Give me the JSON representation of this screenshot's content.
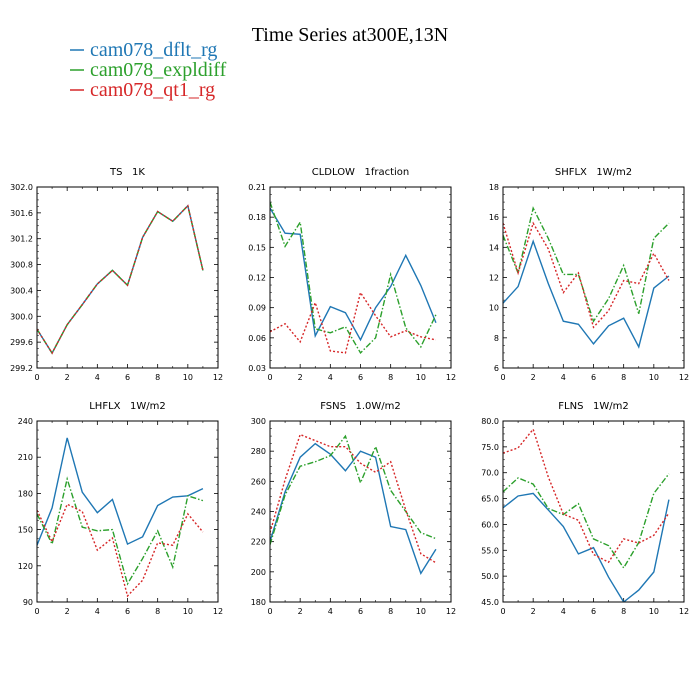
{
  "title": "Time Series at300E,13N",
  "legend": [
    {
      "label": "cam078_dflt_rg",
      "color": "#1f77b4",
      "dash": "solid"
    },
    {
      "label": "cam078_expldiff",
      "color": "#2ca02c",
      "dash": "dashdot"
    },
    {
      "label": "cam078_qt1_rg",
      "color": "#d62728",
      "dash": "dotted"
    }
  ],
  "chart_data": [
    {
      "type": "line",
      "title": "TS   1K",
      "x": [
        0,
        1,
        2,
        3,
        4,
        5,
        6,
        7,
        8,
        9,
        10,
        11
      ],
      "xlim": [
        0,
        12
      ],
      "xticks": [
        0,
        2,
        4,
        6,
        8,
        10,
        12
      ],
      "ylim": [
        299.2,
        302.0
      ],
      "yticks": [
        299.2,
        299.6,
        300.0,
        300.4,
        300.8,
        301.2,
        301.6,
        302.0
      ],
      "ydec": 1,
      "series": [
        {
          "name": "cam078_dflt_rg",
          "values": [
            299.8,
            299.43,
            299.87,
            300.18,
            300.5,
            300.71,
            300.48,
            301.22,
            301.62,
            301.47,
            301.71,
            300.71
          ]
        },
        {
          "name": "cam078_expldiff",
          "values": [
            299.8,
            299.43,
            299.87,
            300.18,
            300.5,
            300.71,
            300.48,
            301.22,
            301.62,
            301.47,
            301.71,
            300.71
          ]
        },
        {
          "name": "cam078_qt1_rg",
          "values": [
            299.8,
            299.43,
            299.87,
            300.18,
            300.5,
            300.71,
            300.48,
            301.22,
            301.62,
            301.47,
            301.71,
            300.71
          ]
        }
      ]
    },
    {
      "type": "line",
      "title": "CLDLOW   1fraction",
      "x": [
        0,
        1,
        2,
        3,
        4,
        5,
        6,
        7,
        8,
        9,
        10,
        11
      ],
      "xlim": [
        0,
        12
      ],
      "xticks": [
        0,
        2,
        4,
        6,
        8,
        10,
        12
      ],
      "ylim": [
        0.03,
        0.21
      ],
      "yticks": [
        0.03,
        0.06,
        0.09,
        0.12,
        0.15,
        0.18,
        0.21
      ],
      "ydec": 2,
      "series": [
        {
          "name": "cam078_dflt_rg",
          "values": [
            0.189,
            0.164,
            0.163,
            0.062,
            0.091,
            0.085,
            0.058,
            0.09,
            0.111,
            0.142,
            0.112,
            0.075
          ]
        },
        {
          "name": "cam078_expldiff",
          "values": [
            0.195,
            0.151,
            0.175,
            0.069,
            0.065,
            0.071,
            0.045,
            0.06,
            0.123,
            0.07,
            0.051,
            0.083
          ]
        },
        {
          "name": "cam078_qt1_rg",
          "values": [
            0.066,
            0.074,
            0.056,
            0.095,
            0.047,
            0.045,
            0.105,
            0.082,
            0.061,
            0.067,
            0.061,
            0.058
          ]
        }
      ]
    },
    {
      "type": "line",
      "title": "SHFLX   1W/m2",
      "x": [
        0,
        1,
        2,
        3,
        4,
        5,
        6,
        7,
        8,
        9,
        10,
        11
      ],
      "xlim": [
        0,
        12
      ],
      "xticks": [
        0,
        2,
        4,
        6,
        8,
        10,
        12
      ],
      "ylim": [
        6,
        18
      ],
      "yticks": [
        6,
        8,
        10,
        12,
        14,
        16,
        18
      ],
      "ydec": 0,
      "series": [
        {
          "name": "cam078_dflt_rg",
          "values": [
            10.3,
            11.4,
            14.4,
            11.6,
            9.1,
            8.9,
            7.6,
            8.8,
            9.3,
            7.4,
            11.3,
            12.1
          ]
        },
        {
          "name": "cam078_expldiff",
          "values": [
            14.8,
            12.3,
            16.6,
            14.6,
            12.2,
            12.2,
            9.1,
            10.6,
            12.8,
            9.6,
            14.6,
            15.6
          ]
        },
        {
          "name": "cam078_qt1_rg",
          "values": [
            15.6,
            12.3,
            15.6,
            13.9,
            11.0,
            12.3,
            8.7,
            9.8,
            11.8,
            11.6,
            13.6,
            11.8
          ]
        }
      ]
    },
    {
      "type": "line",
      "title": "LHFLX   1W/m2",
      "x": [
        0,
        1,
        2,
        3,
        4,
        5,
        6,
        7,
        8,
        9,
        10,
        11
      ],
      "xlim": [
        0,
        12
      ],
      "xticks": [
        0,
        2,
        4,
        6,
        8,
        10,
        12
      ],
      "ylim": [
        90,
        240
      ],
      "yticks": [
        90,
        120,
        150,
        180,
        210,
        240
      ],
      "ydec": 0,
      "series": [
        {
          "name": "cam078_dflt_rg",
          "values": [
            137,
            168,
            226,
            181,
            164,
            175,
            138,
            144,
            170,
            177,
            178,
            184
          ]
        },
        {
          "name": "cam078_expldiff",
          "values": [
            163,
            138,
            192,
            152,
            149,
            150,
            105,
            126,
            149,
            119,
            178,
            174
          ]
        },
        {
          "name": "cam078_qt1_rg",
          "values": [
            166,
            140,
            171,
            165,
            133,
            143,
            95,
            108,
            139,
            137,
            163,
            148
          ]
        }
      ]
    },
    {
      "type": "line",
      "title": "FSNS   1.0W/m2",
      "x": [
        0,
        1,
        2,
        3,
        4,
        5,
        6,
        7,
        8,
        9,
        10,
        11
      ],
      "xlim": [
        0,
        12
      ],
      "xticks": [
        0,
        2,
        4,
        6,
        8,
        10,
        12
      ],
      "ylim": [
        180,
        300
      ],
      "yticks": [
        180,
        200,
        220,
        240,
        260,
        280,
        300
      ],
      "ydec": 0,
      "series": [
        {
          "name": "cam078_dflt_rg",
          "values": [
            220,
            253,
            276,
            285,
            278,
            267,
            280,
            276,
            230,
            228,
            199,
            215
          ]
        },
        {
          "name": "cam078_expldiff",
          "values": [
            218,
            251,
            270,
            273,
            277,
            290,
            259,
            283,
            254,
            240,
            226,
            222
          ]
        },
        {
          "name": "cam078_qt1_rg",
          "values": [
            226,
            261,
            291,
            287,
            283,
            283,
            272,
            266,
            273,
            241,
            212,
            206
          ]
        }
      ]
    },
    {
      "type": "line",
      "title": "FLNS   1W/m2",
      "x": [
        0,
        1,
        2,
        3,
        4,
        5,
        6,
        7,
        8,
        9,
        10,
        11
      ],
      "xlim": [
        0,
        12
      ],
      "xticks": [
        0,
        2,
        4,
        6,
        8,
        10,
        12
      ],
      "ylim": [
        45,
        80
      ],
      "yticks": [
        45,
        50,
        55,
        60,
        65,
        70,
        75,
        80
      ],
      "ydec": 1,
      "series": [
        {
          "name": "cam078_dflt_rg",
          "values": [
            63.2,
            65.5,
            66.0,
            62.8,
            59.6,
            54.3,
            55.5,
            49.8,
            45.0,
            47.3,
            50.8,
            64.8
          ]
        },
        {
          "name": "cam078_expldiff",
          "values": [
            66.3,
            69.0,
            67.8,
            63.1,
            61.9,
            64.0,
            57.2,
            55.9,
            51.6,
            56.5,
            66.0,
            69.8
          ]
        },
        {
          "name": "cam078_qt1_rg",
          "values": [
            73.8,
            74.8,
            78.4,
            69.2,
            62.0,
            60.8,
            54.2,
            52.7,
            57.2,
            56.4,
            57.9,
            62.2
          ]
        }
      ]
    }
  ]
}
